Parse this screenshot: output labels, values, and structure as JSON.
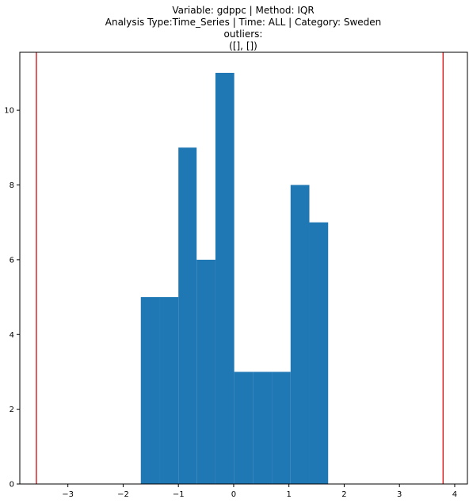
{
  "chart_data": {
    "type": "bar",
    "title_lines": [
      "Variable: gdppc | Method: IQR",
      "Analysis Type:Time_Series | Time: ALL | Category: Sweden",
      "outliers:",
      "([], [])"
    ],
    "xlabel": "",
    "ylabel": "",
    "xlim": [
      -3.87,
      4.23
    ],
    "ylim": [
      0,
      11.55
    ],
    "x_ticks": [
      -3,
      -2,
      -1,
      0,
      1,
      2,
      3,
      4
    ],
    "y_ticks": [
      0,
      2,
      4,
      6,
      8,
      10
    ],
    "bins": [
      {
        "x0": -1.68,
        "x1": -1.34,
        "count": 5
      },
      {
        "x0": -1.34,
        "x1": -1.0,
        "count": 5
      },
      {
        "x0": -1.0,
        "x1": -0.67,
        "count": 9
      },
      {
        "x0": -0.67,
        "x1": -0.33,
        "count": 6
      },
      {
        "x0": -0.33,
        "x1": 0.01,
        "count": 11
      },
      {
        "x0": 0.01,
        "x1": 0.35,
        "count": 3
      },
      {
        "x0": 0.35,
        "x1": 0.69,
        "count": 3
      },
      {
        "x0": 0.69,
        "x1": 1.03,
        "count": 3
      },
      {
        "x0": 1.03,
        "x1": 1.37,
        "count": 8
      },
      {
        "x0": 1.37,
        "x1": 1.71,
        "count": 7
      }
    ],
    "threshold_lines": [
      -3.57,
      3.79
    ],
    "bar_color": "#1f77b4",
    "line_color": "#d62728",
    "grid": false
  }
}
